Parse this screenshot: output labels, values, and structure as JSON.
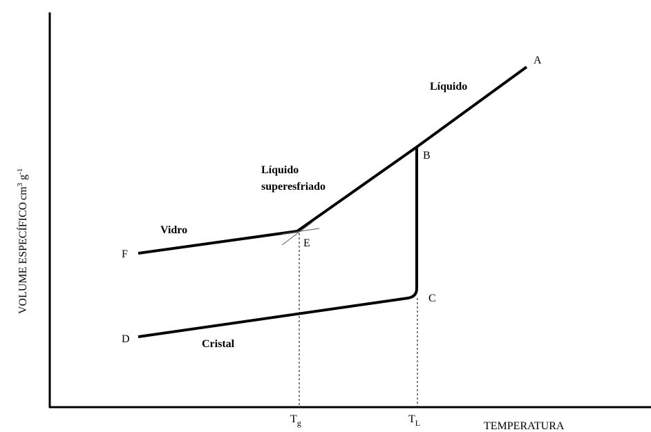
{
  "diagram": {
    "points": {
      "A": "A",
      "B": "B",
      "C": "C",
      "D": "D",
      "E": "E",
      "F": "F"
    },
    "regions": {
      "liquid": "Líquido",
      "supercooled": [
        "Líquido",
        "superesfriado"
      ],
      "glass": "Vidro",
      "crystal": "Cristal"
    },
    "x_axis_label": "TEMPERATURA",
    "y_axis_label": "VOLUME ESPECÍFICO",
    "y_axis_unit": {
      "base1": "cm",
      "sup1": "3",
      "base2": " g",
      "sup2": "-1"
    },
    "tg": {
      "base": "T",
      "sub": "g"
    },
    "tl": {
      "base": "T",
      "sub": "L"
    }
  }
}
